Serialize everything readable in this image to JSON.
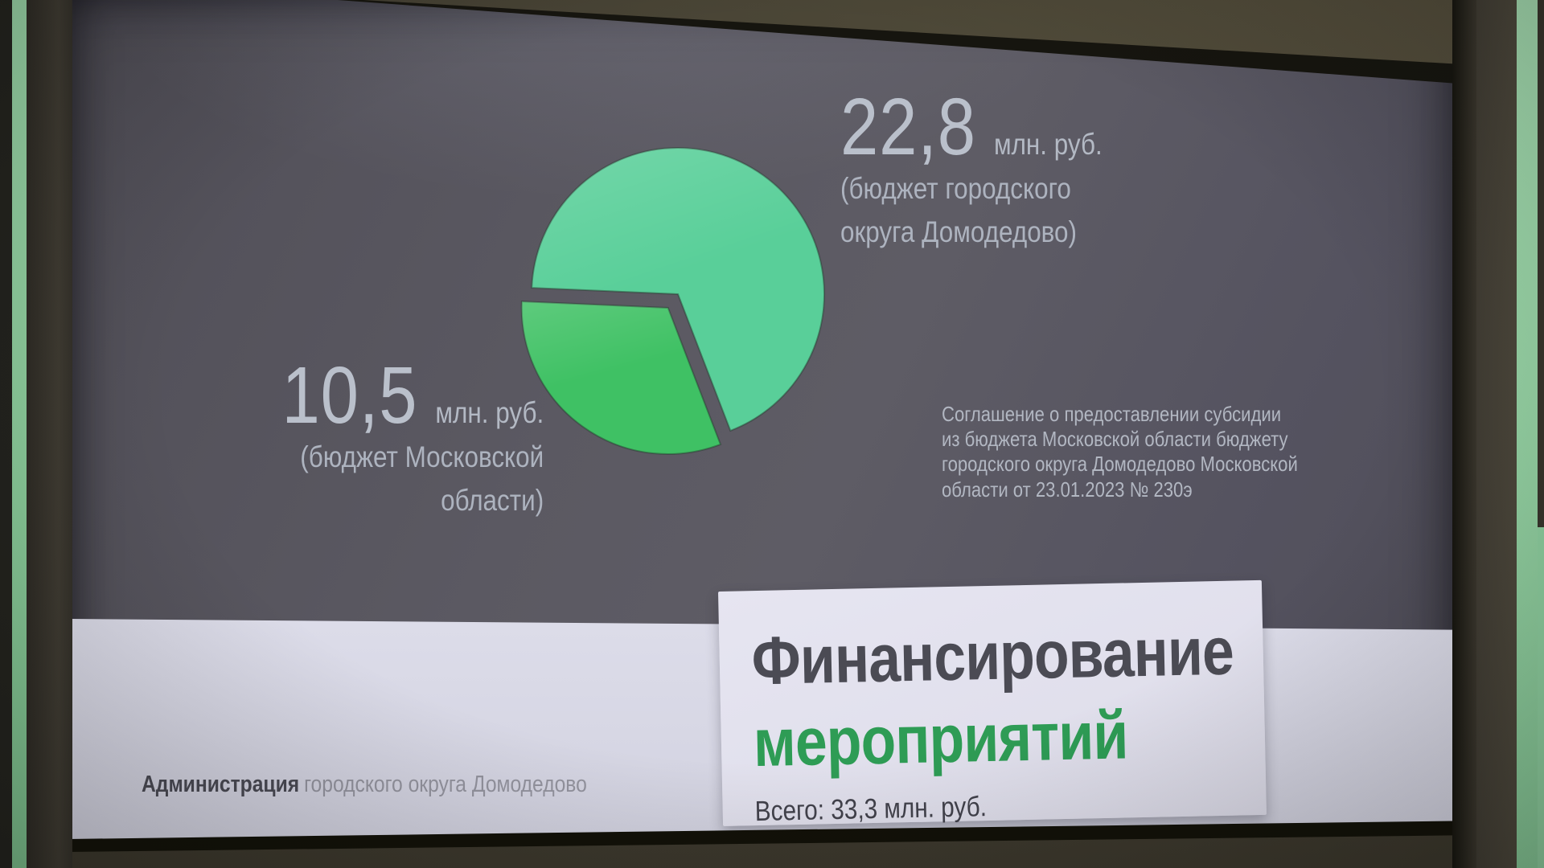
{
  "chart_data": {
    "type": "pie",
    "title": "Финансирование мероприятий",
    "total_value": 33.3,
    "total_label": "Всего: 33,3 млн. руб.",
    "legend_position": "callout-labels",
    "grid": false,
    "slices": [
      {
        "name": "бюджет городского округа Домодедово",
        "value": 22.8,
        "value_label": "22,8",
        "unit": "млн. руб.",
        "color": "#59cf99",
        "exploded": false
      },
      {
        "name": "бюджет Московской области",
        "value": 10.5,
        "value_label": "10,5",
        "unit": "млн. руб.",
        "color": "#3fc164",
        "exploded": true
      }
    ]
  },
  "slide": {
    "right_label": {
      "line1": "(бюджет городского",
      "line2": "округа Домодедово)"
    },
    "left_label": {
      "line1": "(бюджет Московской",
      "line2": "области)"
    },
    "agreement": {
      "line1": "Соглашение о предоставлении субсидии",
      "line2": "из бюджета Московской области бюджету",
      "line3": "городского округа Домодедово Московской",
      "line4": "области от 23.01.2023 № 230э"
    },
    "card": {
      "title_line1": "Финансирование",
      "title_line2": "мероприятий"
    },
    "footer": {
      "org_bold": "Администрация",
      "org_rest": "городского округа Домодедово"
    }
  },
  "colors": {
    "slide_background": "#57555e",
    "footer_band": "#d6d6e3",
    "card_background": "#e3e2ee",
    "card_title_dark": "#4b4b54",
    "card_title_green": "#2e9c55",
    "value_text": "#bac0cb",
    "secondary_text": "#adb3bf",
    "bezel_brown": "#46423a",
    "frame_green": "#8fd0a0"
  }
}
